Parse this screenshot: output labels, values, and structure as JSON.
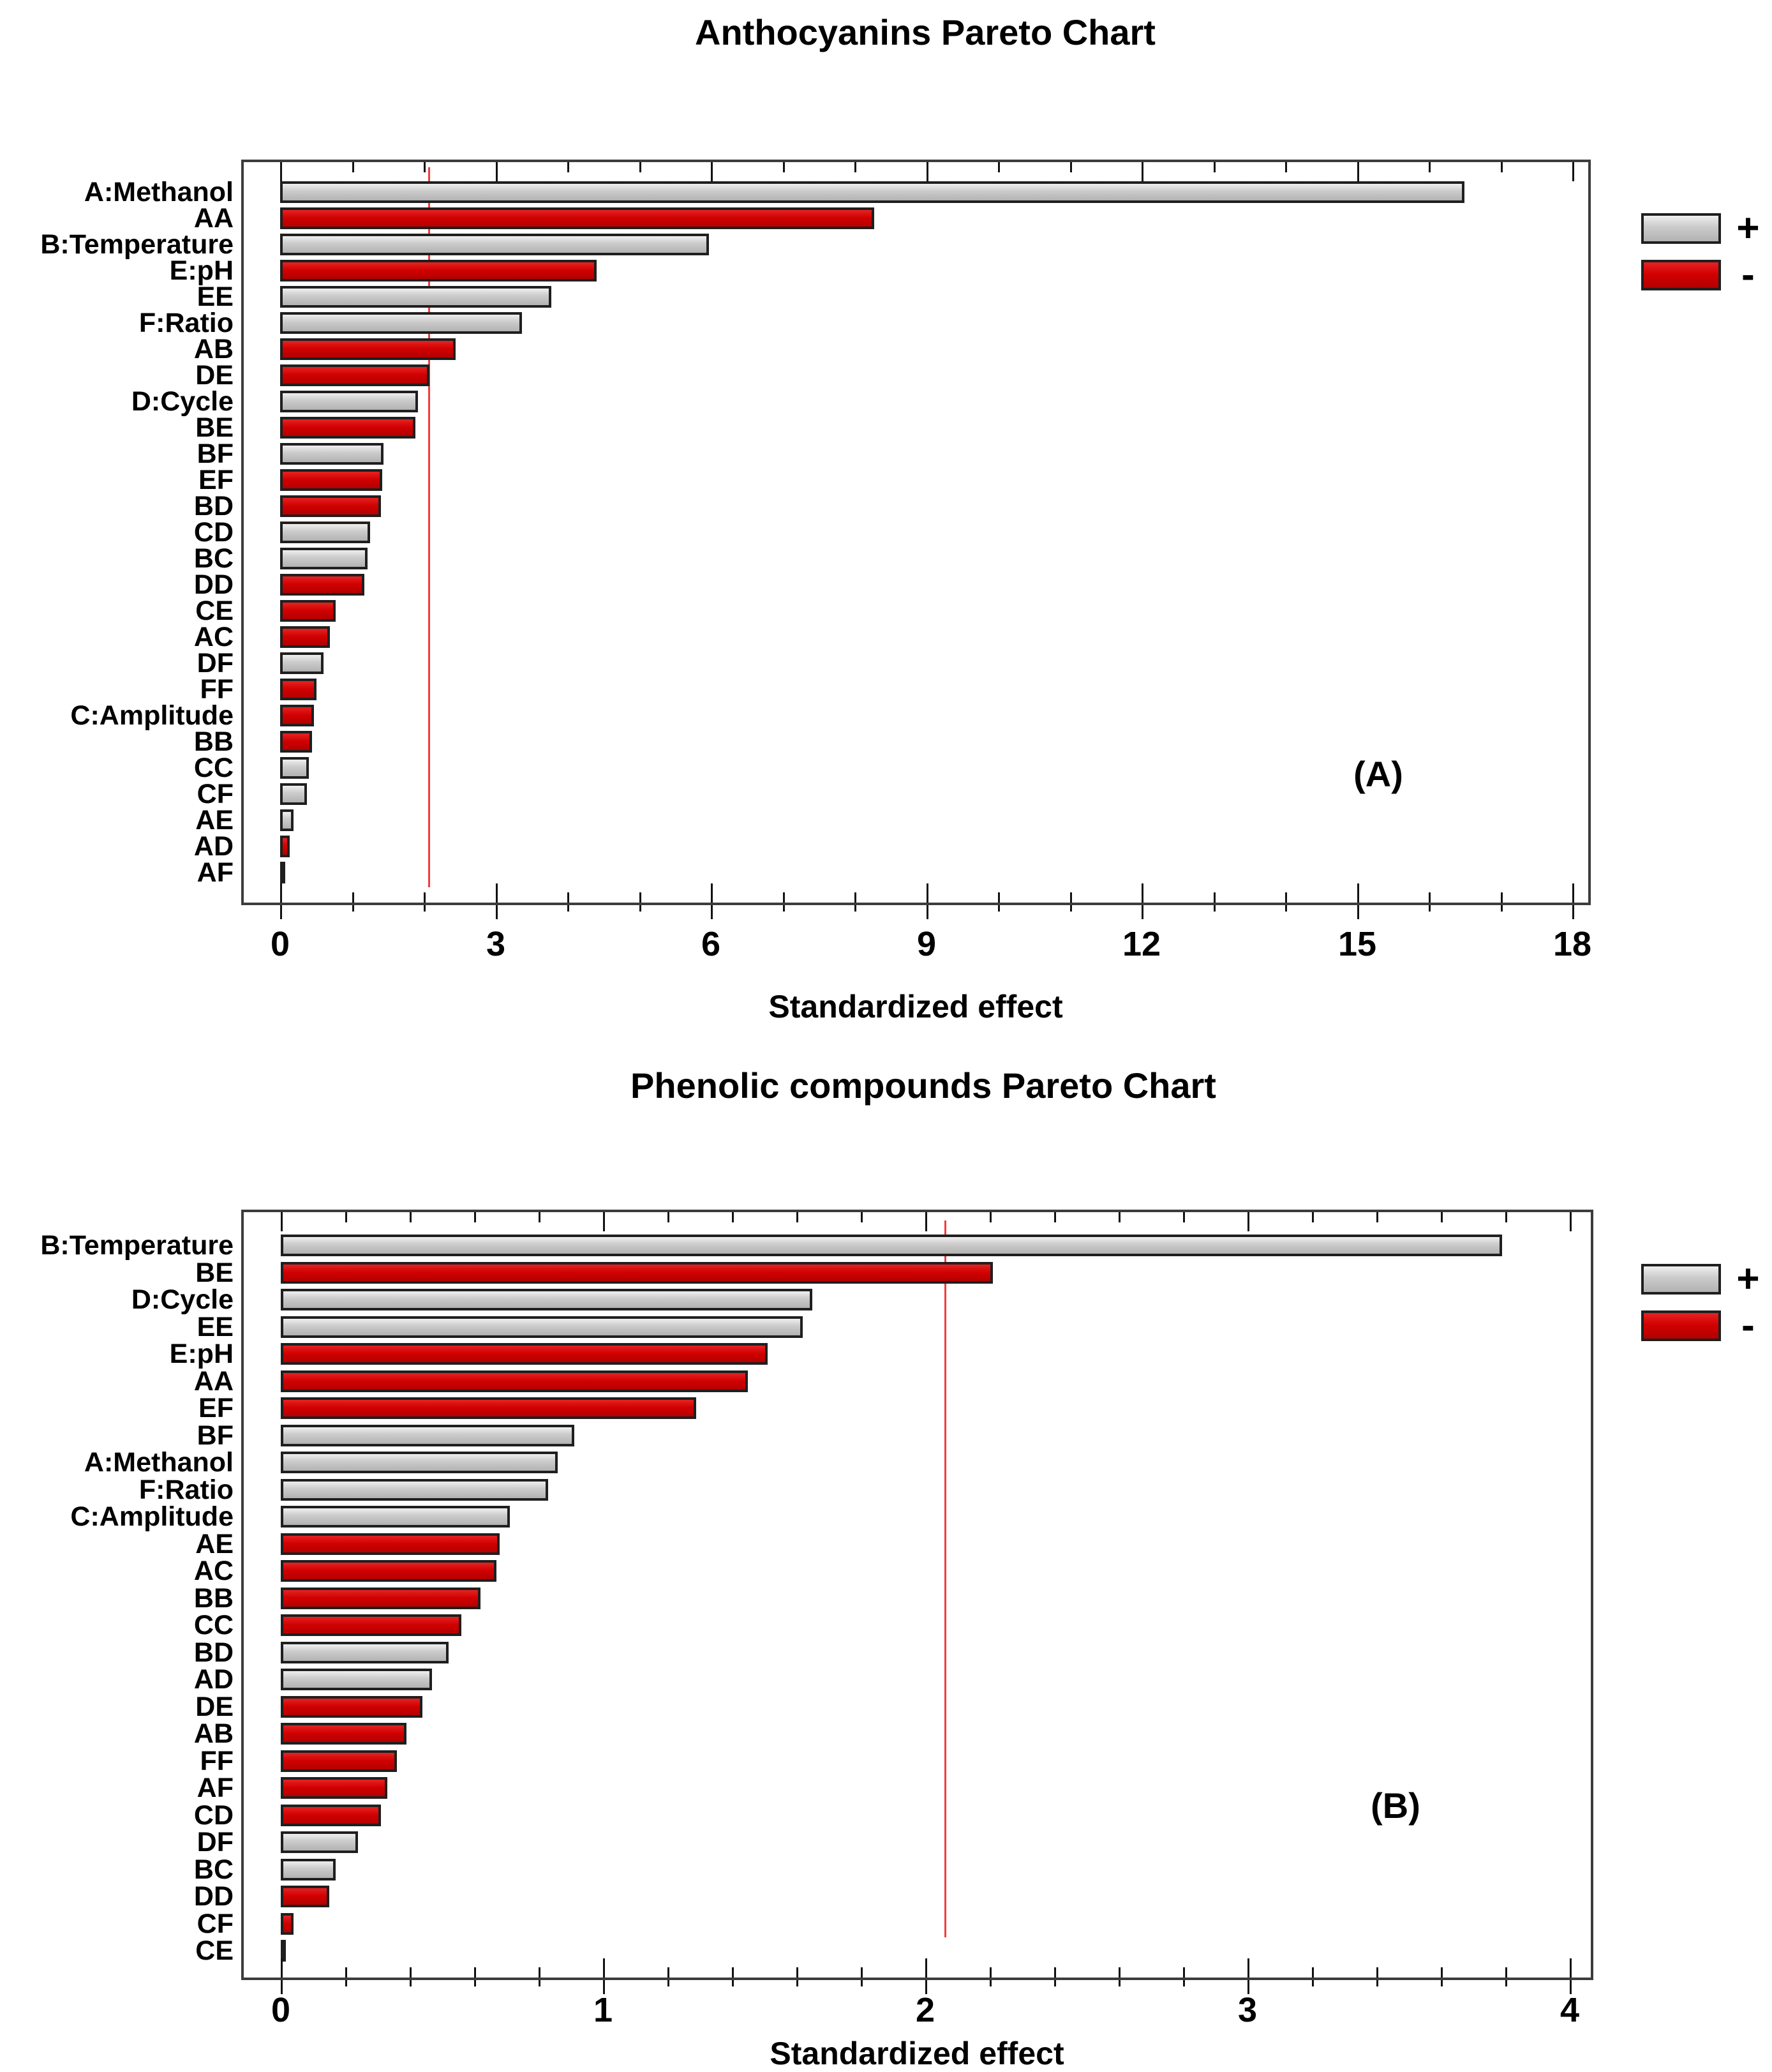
{
  "page": {
    "background": "#ffffff"
  },
  "colors": {
    "positive_fill": "#c9c9c9",
    "negative_fill": "#d10000",
    "bar_border": "#1f1f1f",
    "frame_border": "#3c3c3c",
    "reference_line": "#f23b3b",
    "text": "#000000"
  },
  "chart_data": [
    {
      "type": "bar",
      "orientation": "horizontal",
      "id": "A",
      "title": "Anthocyanins Pareto Chart",
      "panel_label": "(A)",
      "xlabel": "Standardized effect",
      "ylabel": "",
      "xlim": [
        0,
        18.25
      ],
      "x_major_ticks": [
        0,
        3,
        6,
        9,
        12,
        15,
        18
      ],
      "x_minor_step": 1,
      "reference_line_x": 2.06,
      "grid": false,
      "legend": {
        "position": "right",
        "positive_label": "+",
        "negative_label": "-"
      },
      "categories": [
        "A:Methanol",
        "AA",
        "B:Temperature",
        "E:pH",
        "EE",
        "F:Ratio",
        "AB",
        "DE",
        "D:Cycle",
        "BE",
        "BF",
        "EF",
        "BD",
        "CD",
        "BC",
        "DD",
        "CE",
        "AC",
        "DF",
        "FF",
        "C:Amplitude",
        "BB",
        "CC",
        "CF",
        "AE",
        "AD",
        "AF"
      ],
      "values": [
        16.5,
        8.28,
        5.97,
        4.41,
        3.78,
        3.37,
        2.44,
        2.08,
        1.92,
        1.88,
        1.44,
        1.42,
        1.4,
        1.25,
        1.22,
        1.17,
        0.77,
        0.69,
        0.6,
        0.51,
        0.47,
        0.44,
        0.4,
        0.37,
        0.19,
        0.13,
        0.02
      ],
      "signs": [
        "+",
        "-",
        "+",
        "-",
        "+",
        "+",
        "-",
        "-",
        "+",
        "-",
        "+",
        "-",
        "-",
        "+",
        "+",
        "-",
        "-",
        "-",
        "+",
        "-",
        "-",
        "-",
        "+",
        "+",
        "+",
        "-",
        "+"
      ]
    },
    {
      "type": "bar",
      "orientation": "horizontal",
      "id": "B",
      "title": "Phenolic compounds Pareto Chart",
      "panel_label": "(B)",
      "xlabel": "Standardized effect",
      "ylabel": "",
      "xlim": [
        0,
        4.07
      ],
      "x_major_ticks": [
        0,
        1,
        2,
        3,
        4
      ],
      "x_minor_step": 0.2,
      "reference_line_x": 2.06,
      "grid": false,
      "legend": {
        "position": "right",
        "positive_label": "+",
        "negative_label": "-"
      },
      "categories": [
        "B:Temperature",
        "BE",
        "D:Cycle",
        "EE",
        "E:pH",
        "AA",
        "EF",
        "BF",
        "A:Methanol",
        "F:Ratio",
        "C:Amplitude",
        "AE",
        "AC",
        "BB",
        "CC",
        "BD",
        "AD",
        "DE",
        "AB",
        "FF",
        "AF",
        "CD",
        "DF",
        "BC",
        "DD",
        "CF",
        "CE"
      ],
      "values": [
        3.79,
        2.21,
        1.65,
        1.62,
        1.51,
        1.45,
        1.29,
        0.91,
        0.86,
        0.83,
        0.71,
        0.68,
        0.67,
        0.62,
        0.56,
        0.52,
        0.47,
        0.44,
        0.39,
        0.36,
        0.33,
        0.31,
        0.24,
        0.17,
        0.15,
        0.04,
        0.01
      ],
      "signs": [
        "+",
        "-",
        "+",
        "+",
        "-",
        "-",
        "-",
        "+",
        "+",
        "+",
        "+",
        "-",
        "-",
        "-",
        "-",
        "+",
        "+",
        "-",
        "-",
        "-",
        "-",
        "-",
        "+",
        "+",
        "-",
        "-",
        "-"
      ]
    }
  ]
}
